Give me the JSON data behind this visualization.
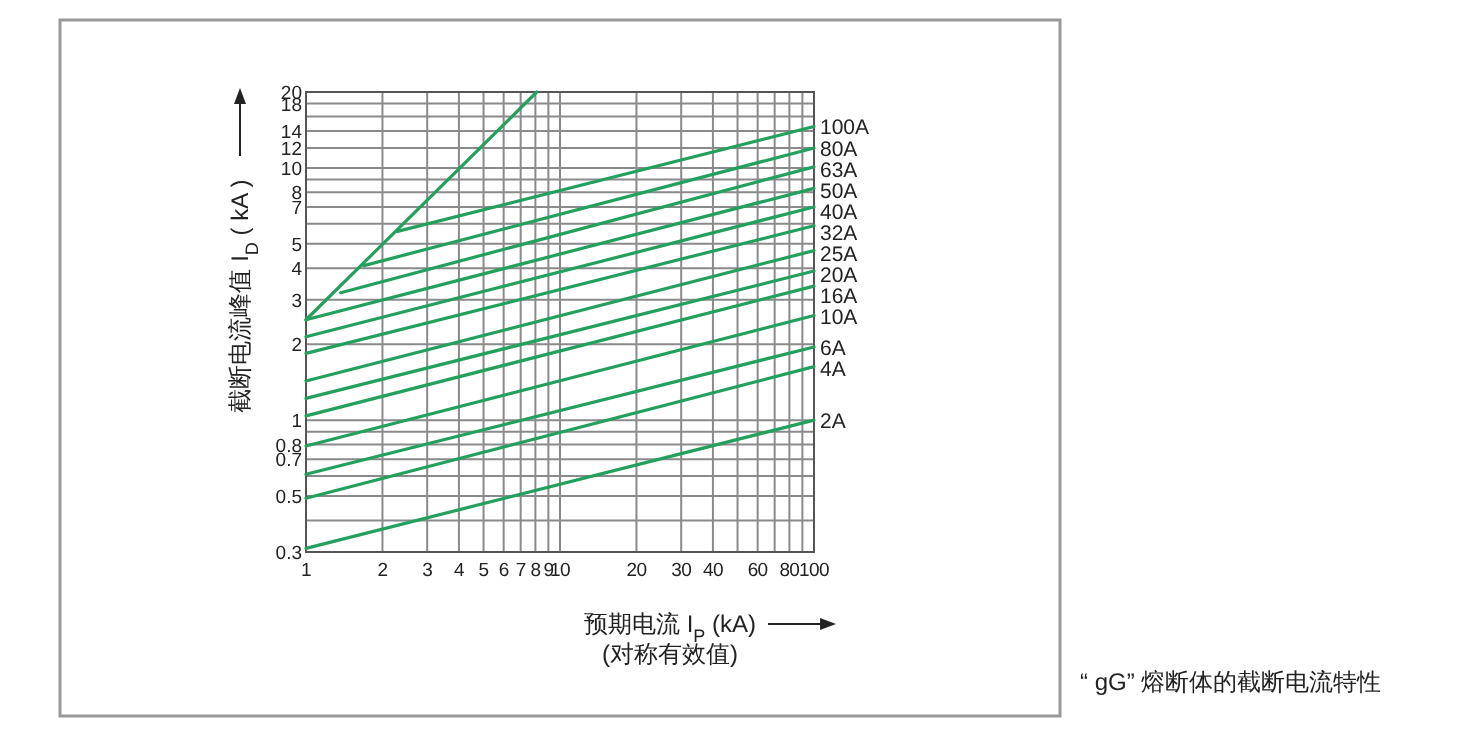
{
  "chart_data": {
    "type": "line",
    "xlabel": "预期电流 I$_{P}$ (kA)\n(对称有效值)",
    "ylabel": "截断电流峰值 I$_{D}$ ( kA )",
    "log": "xy",
    "xlim": [
      1,
      100
    ],
    "ylim": [
      0.3,
      20
    ],
    "xticks": [
      1,
      2,
      3,
      4,
      5,
      6,
      7,
      8,
      9,
      10,
      20,
      30,
      40,
      {
        "value": 50,
        "label": null
      },
      60,
      {
        "value": 70,
        "label": null
      },
      80,
      {
        "value": 90,
        "label": null
      },
      100
    ],
    "yticks": [
      0.3,
      {
        "value": 0.4,
        "label": null
      },
      0.5,
      {
        "value": 0.6,
        "label": null
      },
      0.7,
      0.8,
      {
        "value": 0.9,
        "label": null
      },
      1,
      2,
      3,
      4,
      5,
      {
        "value": 6,
        "label": null
      },
      7,
      8,
      {
        "value": 9,
        "label": null
      },
      10,
      12,
      14,
      {
        "value": 16,
        "label": null
      },
      18,
      20
    ],
    "grid": true,
    "annotations": [
      "“ gG” 熔断体的截断电流特性"
    ],
    "series": [
      {
        "color": "#23a05c",
        "x": [
          1,
          8.1
        ],
        "values": [
          2.5,
          20
        ]
      },
      {
        "name": "100A",
        "color": "#23a05c",
        "x": [
          2.29,
          100
        ],
        "values": [
          5.6,
          14.6
        ]
      },
      {
        "name": "80A",
        "color": "#23a05c",
        "x": [
          1.69,
          100
        ],
        "values": [
          4.1,
          12.0
        ]
      },
      {
        "name": "63A",
        "color": "#23a05c",
        "x": [
          1.37,
          100
        ],
        "values": [
          3.2,
          10.1
        ]
      },
      {
        "name": "50A",
        "color": "#23a05c",
        "x": [
          1,
          100
        ],
        "values": [
          2.5,
          8.3
        ]
      },
      {
        "name": "40A",
        "color": "#23a05c",
        "x": [
          1,
          100
        ],
        "values": [
          2.14,
          7.0
        ]
      },
      {
        "name": "32A",
        "color": "#23a05c",
        "x": [
          1,
          100
        ],
        "values": [
          1.84,
          5.9
        ]
      },
      {
        "name": "25A",
        "color": "#23a05c",
        "x": [
          1,
          100
        ],
        "values": [
          1.43,
          4.7
        ]
      },
      {
        "name": "20A",
        "color": "#23a05c",
        "x": [
          1,
          100
        ],
        "values": [
          1.22,
          3.9
        ]
      },
      {
        "name": "16A",
        "color": "#23a05c",
        "x": [
          1,
          100
        ],
        "values": [
          1.04,
          3.4
        ]
      },
      {
        "name": "10A",
        "color": "#23a05c",
        "x": [
          1,
          100
        ],
        "values": [
          0.79,
          2.6
        ]
      },
      {
        "name": "6A",
        "color": "#23a05c",
        "x": [
          1,
          100
        ],
        "values": [
          0.61,
          1.95
        ]
      },
      {
        "name": "4A",
        "color": "#23a05c",
        "x": [
          1,
          100
        ],
        "values": [
          0.49,
          1.63
        ]
      },
      {
        "name": "2A",
        "color": "#23a05c",
        "x": [
          1,
          100
        ],
        "values": [
          0.31,
          1.0
        ]
      }
    ]
  }
}
